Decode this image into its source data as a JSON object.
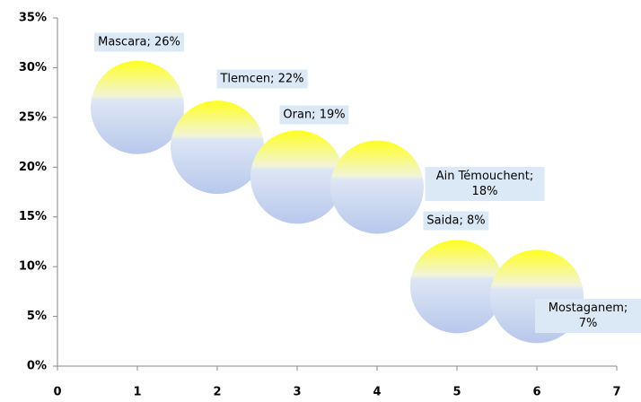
{
  "chart_data": {
    "type": "scatter",
    "x": [
      1,
      2,
      3,
      4,
      5,
      6
    ],
    "values": [
      26,
      22,
      19,
      18,
      8,
      7
    ],
    "value_labels": [
      "Mascara; 26%",
      "Tlemcen; 22%",
      "Oran; 19%",
      "Ain Témouchent; 18%",
      "Saida; 8%",
      "Mostaganem; 7%"
    ],
    "xlim": [
      0,
      7
    ],
    "xticks": [
      0,
      1,
      2,
      3,
      4,
      5,
      6,
      7
    ],
    "ylim": [
      0,
      35
    ],
    "yticks": [
      {
        "value": 0,
        "label": "0%"
      },
      {
        "value": 5,
        "label": "5%"
      },
      {
        "value": 10,
        "label": "10%"
      },
      {
        "value": 15,
        "label": "15%"
      },
      {
        "value": 20,
        "label": "20%"
      },
      {
        "value": 25,
        "label": "25%"
      },
      {
        "value": 30,
        "label": "30%"
      },
      {
        "value": 35,
        "label": "35%"
      }
    ],
    "grid": false
  }
}
